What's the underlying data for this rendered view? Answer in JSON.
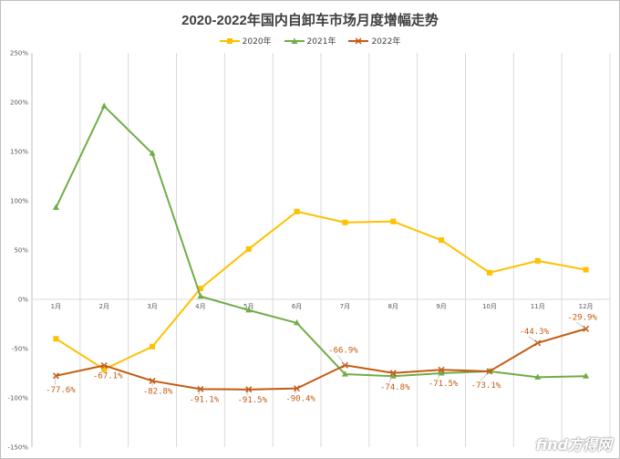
{
  "chart_data": {
    "type": "line",
    "title": "2020-2022年国内自卸车市场月度增幅走势",
    "categories": [
      "1月",
      "2月",
      "3月",
      "4月",
      "5月",
      "6月",
      "7月",
      "8月",
      "9月",
      "10月",
      "11月",
      "12月"
    ],
    "y_ticks": [
      "250%",
      "200%",
      "150%",
      "100%",
      "50%",
      "0%",
      "-50%",
      "-100%",
      "-150%"
    ],
    "ylim": [
      -150,
      250
    ],
    "y_unit": "percent",
    "grid": "vertical",
    "legend_position": "top",
    "series": [
      {
        "name": "2020年",
        "color": "#FFC000",
        "marker": "square",
        "values": [
          -40,
          -71,
          -48,
          11,
          51,
          89,
          78,
          79,
          60,
          27,
          39,
          30
        ]
      },
      {
        "name": "2021年",
        "color": "#70AD47",
        "marker": "triangle",
        "values": [
          93,
          196,
          148,
          3,
          -11,
          -24,
          -76,
          -78,
          -75,
          -73,
          -79,
          -78
        ]
      },
      {
        "name": "2022年",
        "color": "#C55A11",
        "marker": "x",
        "values": [
          -77.6,
          -67.1,
          -82.8,
          -91.1,
          -91.5,
          -90.4,
          -66.9,
          -74.8,
          -71.5,
          -73.1,
          -44.3,
          -29.9
        ],
        "data_labels": [
          "-77.6%",
          "-67.1%",
          "-82.8%",
          "-91.1%",
          "-91.5%",
          "-90.4%",
          "-66.9%",
          "-74.8%",
          "-71.5%",
          "-73.1%",
          "-44.3%",
          "-29.9%"
        ]
      }
    ]
  },
  "watermark": "find方得网"
}
